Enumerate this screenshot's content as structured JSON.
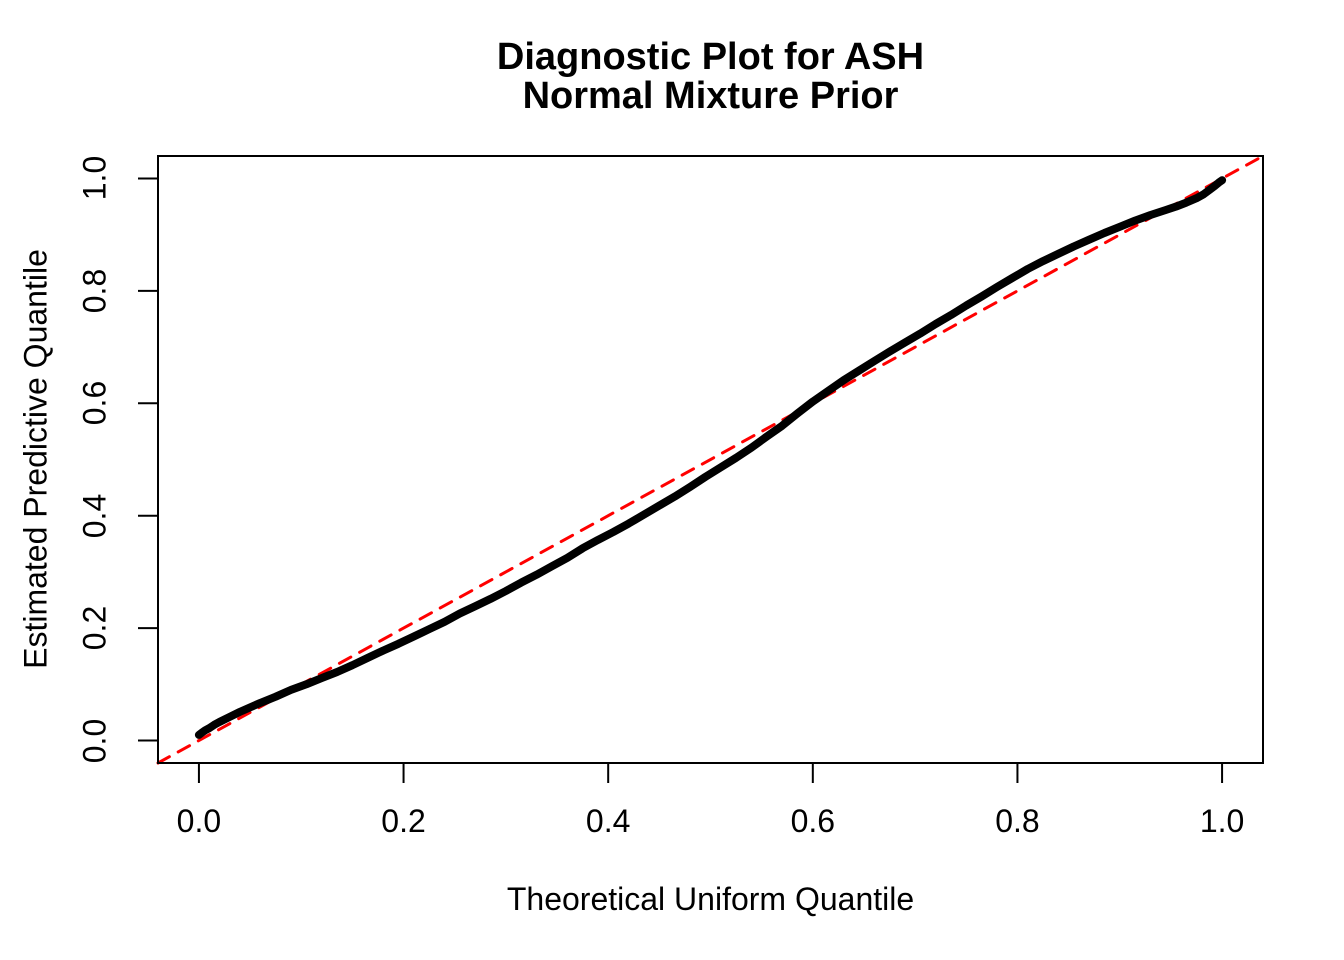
{
  "chart_data": {
    "type": "line",
    "title_lines": [
      "Diagnostic Plot for ASH",
      "Normal Mixture Prior"
    ],
    "xlabel": "Theoretical Uniform Quantile",
    "ylabel": "Estimated Predictive Quantile",
    "xlim": [
      -0.04,
      1.04
    ],
    "ylim": [
      -0.04,
      1.04
    ],
    "grid": false,
    "legend": "none",
    "frame_color": "#000000",
    "background_color": "#ffffff",
    "x_ticks": {
      "values": [
        0.0,
        0.2,
        0.4,
        0.6,
        0.8,
        1.0
      ],
      "labels": [
        "0.0",
        "0.2",
        "0.4",
        "0.6",
        "0.8",
        "1.0"
      ]
    },
    "y_ticks": {
      "values": [
        0.0,
        0.2,
        0.4,
        0.6,
        0.8,
        1.0
      ],
      "labels": [
        "0.0",
        "0.2",
        "0.4",
        "0.6",
        "0.8",
        "1.0"
      ]
    },
    "series": [
      {
        "name": "reference-diagonal-y-equals-x",
        "type": "line",
        "color": "#FF0000",
        "line_width": 3,
        "line_style": "dashed",
        "points": [
          [
            -0.04,
            -0.04
          ],
          [
            1.04,
            1.04
          ]
        ]
      },
      {
        "name": "estimated-predictive-quantiles",
        "type": "line",
        "color": "#000000",
        "line_width": 8,
        "line_style": "solid",
        "points": [
          [
            0.0,
            0.01
          ],
          [
            0.003,
            0.014
          ],
          [
            0.006,
            0.018
          ],
          [
            0.01,
            0.022
          ],
          [
            0.015,
            0.028
          ],
          [
            0.02,
            0.033
          ],
          [
            0.03,
            0.042
          ],
          [
            0.04,
            0.051
          ],
          [
            0.05,
            0.059
          ],
          [
            0.06,
            0.067
          ],
          [
            0.075,
            0.078
          ],
          [
            0.09,
            0.09
          ],
          [
            0.105,
            0.1
          ],
          [
            0.12,
            0.111
          ],
          [
            0.135,
            0.122
          ],
          [
            0.15,
            0.134
          ],
          [
            0.165,
            0.147
          ],
          [
            0.18,
            0.16
          ],
          [
            0.195,
            0.172
          ],
          [
            0.21,
            0.185
          ],
          [
            0.225,
            0.198
          ],
          [
            0.24,
            0.211
          ],
          [
            0.255,
            0.226
          ],
          [
            0.27,
            0.239
          ],
          [
            0.285,
            0.252
          ],
          [
            0.3,
            0.266
          ],
          [
            0.315,
            0.281
          ],
          [
            0.33,
            0.295
          ],
          [
            0.345,
            0.31
          ],
          [
            0.36,
            0.325
          ],
          [
            0.375,
            0.342
          ],
          [
            0.39,
            0.357
          ],
          [
            0.405,
            0.371
          ],
          [
            0.42,
            0.386
          ],
          [
            0.435,
            0.402
          ],
          [
            0.45,
            0.418
          ],
          [
            0.465,
            0.434
          ],
          [
            0.48,
            0.451
          ],
          [
            0.495,
            0.469
          ],
          [
            0.51,
            0.486
          ],
          [
            0.525,
            0.503
          ],
          [
            0.54,
            0.521
          ],
          [
            0.555,
            0.541
          ],
          [
            0.57,
            0.56
          ],
          [
            0.585,
            0.582
          ],
          [
            0.6,
            0.603
          ],
          [
            0.615,
            0.622
          ],
          [
            0.63,
            0.641
          ],
          [
            0.645,
            0.658
          ],
          [
            0.66,
            0.675
          ],
          [
            0.675,
            0.692
          ],
          [
            0.69,
            0.708
          ],
          [
            0.705,
            0.724
          ],
          [
            0.72,
            0.741
          ],
          [
            0.735,
            0.757
          ],
          [
            0.75,
            0.774
          ],
          [
            0.765,
            0.79
          ],
          [
            0.78,
            0.807
          ],
          [
            0.795,
            0.823
          ],
          [
            0.81,
            0.839
          ],
          [
            0.825,
            0.853
          ],
          [
            0.84,
            0.866
          ],
          [
            0.855,
            0.879
          ],
          [
            0.87,
            0.891
          ],
          [
            0.885,
            0.903
          ],
          [
            0.9,
            0.914
          ],
          [
            0.915,
            0.925
          ],
          [
            0.93,
            0.935
          ],
          [
            0.945,
            0.944
          ],
          [
            0.955,
            0.95
          ],
          [
            0.965,
            0.957
          ],
          [
            0.975,
            0.965
          ],
          [
            0.982,
            0.972
          ],
          [
            0.988,
            0.98
          ],
          [
            0.993,
            0.987
          ],
          [
            0.997,
            0.993
          ],
          [
            1.0,
            0.997
          ]
        ]
      }
    ]
  }
}
